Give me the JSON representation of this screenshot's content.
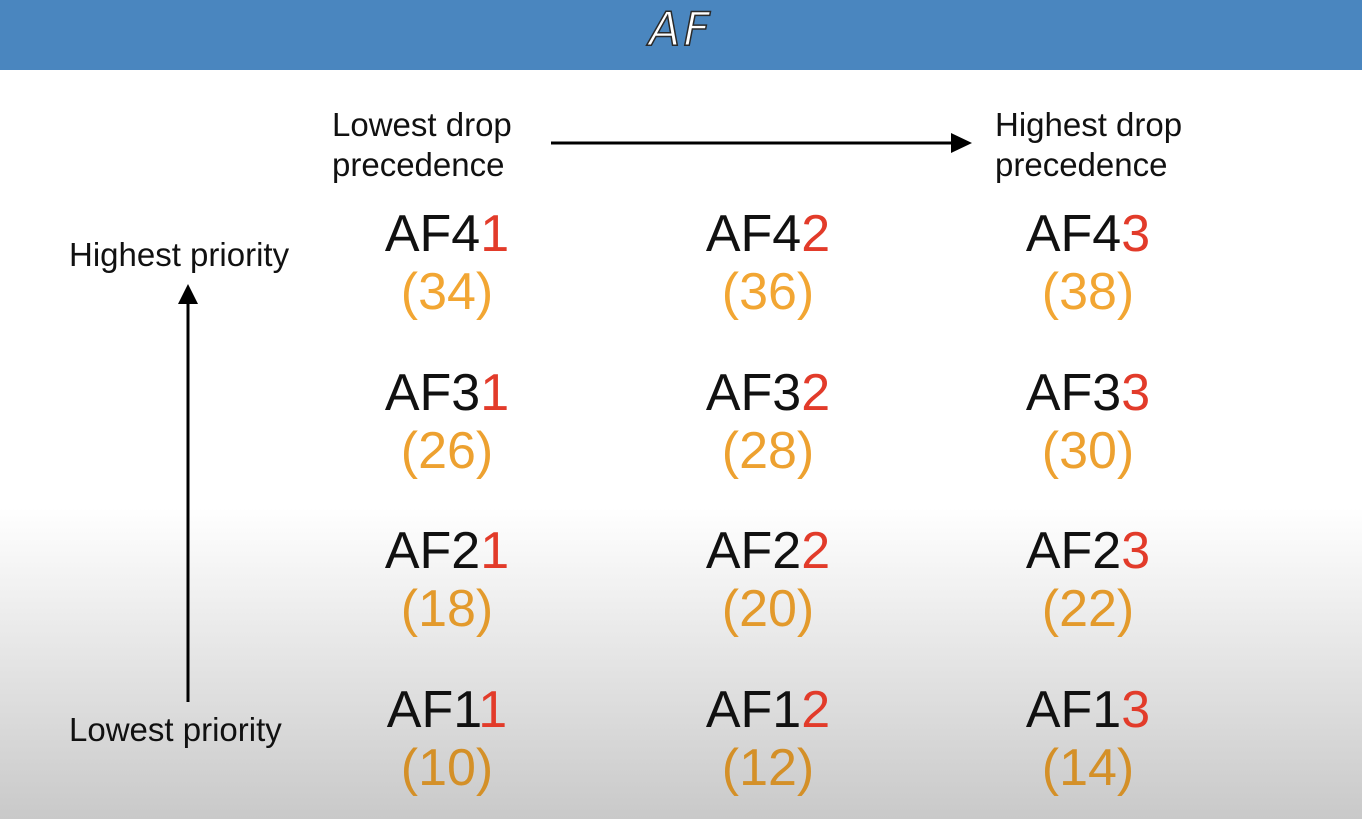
{
  "title": "AF",
  "labels": {
    "lowest_drop": "Lowest drop precedence",
    "highest_drop": "Highest drop precedence",
    "highest_priority": "Highest priority",
    "lowest_priority": "Lowest priority"
  },
  "colors": {
    "header": "#4a86bf",
    "drop_digit": "#e23b2a",
    "dscp": "#f0a030"
  },
  "rows": [
    {
      "cells": [
        {
          "prefix": "AF4",
          "digit": "1",
          "dscp": "(34)"
        },
        {
          "prefix": "AF4",
          "digit": "2",
          "dscp": "(36)"
        },
        {
          "prefix": "AF4",
          "digit": "3",
          "dscp": "(38)"
        }
      ]
    },
    {
      "cells": [
        {
          "prefix": "AF3",
          "digit": "1",
          "dscp": "(26)"
        },
        {
          "prefix": "AF3",
          "digit": "2",
          "dscp": "(28)"
        },
        {
          "prefix": "AF3",
          "digit": "3",
          "dscp": "(30)"
        }
      ]
    },
    {
      "cells": [
        {
          "prefix": "AF2",
          "digit": "1",
          "dscp": "(18)"
        },
        {
          "prefix": "AF2",
          "digit": "2",
          "dscp": "(20)"
        },
        {
          "prefix": "AF2",
          "digit": "3",
          "dscp": "(22)"
        }
      ]
    },
    {
      "cells": [
        {
          "prefix": "AF1",
          "digit": "1",
          "dscp": "(10)"
        },
        {
          "prefix": "AF1",
          "digit": "2",
          "dscp": "(12)"
        },
        {
          "prefix": "AF1",
          "digit": "3",
          "dscp": "(14)"
        }
      ]
    }
  ]
}
